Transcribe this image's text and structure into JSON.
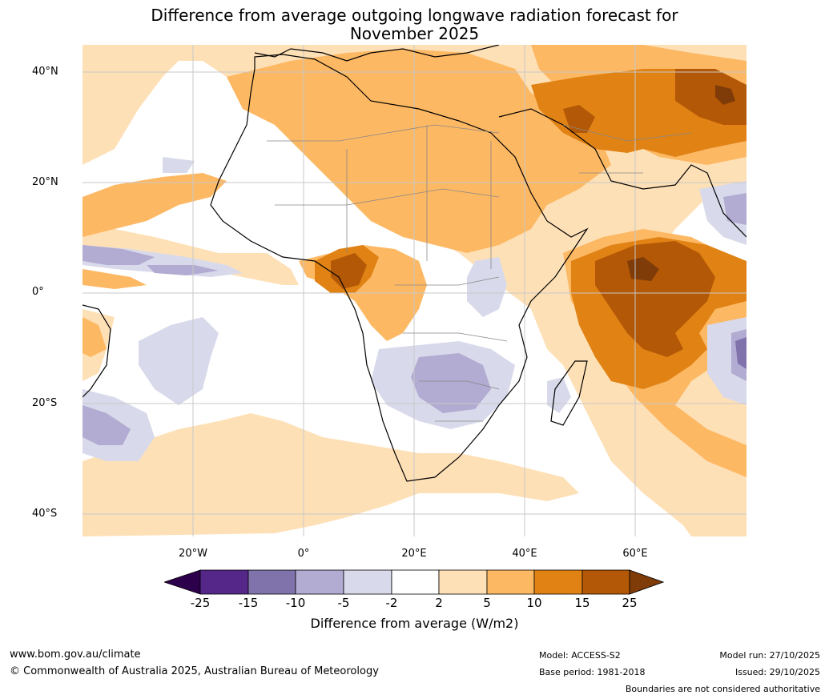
{
  "title": {
    "line1": "Difference from average outgoing longwave radiation forecast for",
    "line2": "November 2025"
  },
  "map": {
    "region": "Africa, Atlantic and western Indian Ocean",
    "lat_labels": [
      "40°N",
      "20°N",
      "0°",
      "20°S",
      "40°S"
    ],
    "lon_labels": [
      "20°W",
      "0°",
      "20°E",
      "40°E",
      "60°E"
    ]
  },
  "colorbar": {
    "title": "Difference from average (W/m2)",
    "ticks": [
      "-25",
      "-15",
      "-10",
      "-5",
      "-2",
      "2",
      "5",
      "10",
      "15",
      "25"
    ],
    "colors": [
      "#2d004b",
      "#542788",
      "#8073ac",
      "#b2abd2",
      "#d8daeb",
      "#ffffff",
      "#fee0b6",
      "#fdb863",
      "#e08214",
      "#b35806",
      "#7f3b08"
    ]
  },
  "footer": {
    "website": "www.bom.gov.au/climate",
    "copyright": "© Commonwealth of Australia 2025, Australian Bureau of Meteorology",
    "model": "Model: ACCESS-S2",
    "base_period": "Base period: 1981-2018",
    "model_run": "Model run: 27/10/2025",
    "issued": "Issued: 29/10/2025",
    "disclaimer": "Boundaries are not considered authoritative"
  }
}
